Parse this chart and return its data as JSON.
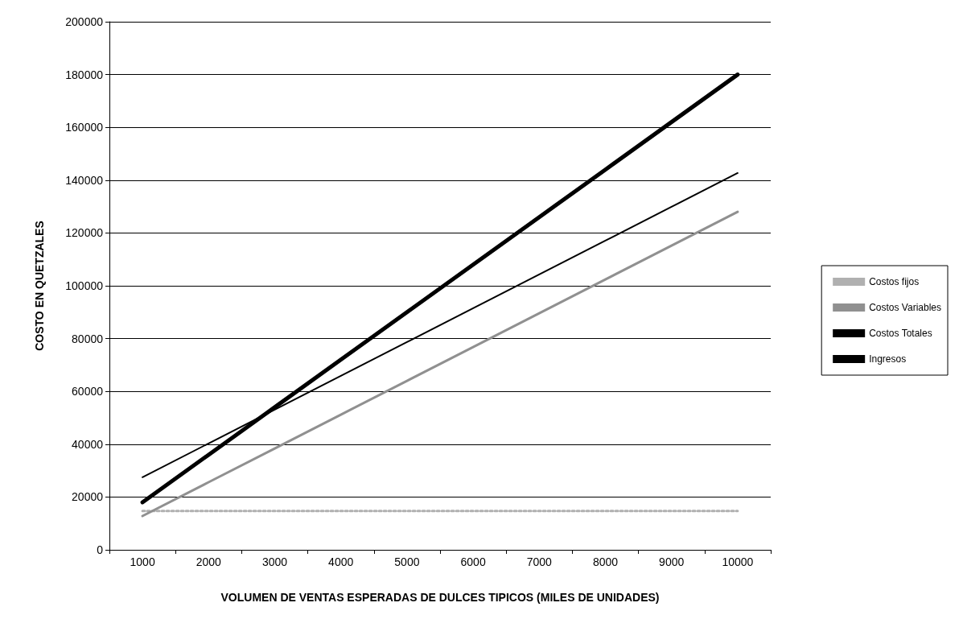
{
  "chart_data": {
    "type": "line",
    "xlabel": "VOLUMEN DE VENTAS ESPERADAS DE DULCES TIPICOS (MILES DE UNIDADES)",
    "ylabel": "COSTO EN QUETZALES",
    "categories": [
      "1000",
      "2000",
      "3000",
      "4000",
      "5000",
      "6000",
      "7000",
      "8000",
      "9000",
      "10000"
    ],
    "series": [
      {
        "name": "Costos fijos",
        "color": "#b0b0b0",
        "line_style": "dotted",
        "values": [
          14700,
          14700,
          14700,
          14700,
          14700,
          14700,
          14700,
          14700,
          14700,
          14700
        ]
      },
      {
        "name": "Costos Variables",
        "color": "#909090",
        "values": [
          12800,
          25600,
          38400,
          51200,
          64000,
          76800,
          89600,
          102400,
          115200,
          128000
        ]
      },
      {
        "name": "Costos Totales",
        "color": "#000000",
        "values": [
          27500,
          40300,
          53100,
          65900,
          78700,
          91500,
          104300,
          117100,
          129900,
          142700
        ]
      },
      {
        "name": "Ingresos",
        "color": "#000000",
        "values": [
          18000,
          36000,
          54000,
          72000,
          90000,
          108000,
          126000,
          144000,
          162000,
          180000
        ]
      }
    ],
    "ylim": [
      0,
      200000
    ],
    "yticks": [
      0,
      20000,
      40000,
      60000,
      80000,
      100000,
      120000,
      140000,
      160000,
      180000,
      200000
    ],
    "grid": "y",
    "legend": "right",
    "marker": "none",
    "line_style": "solid"
  }
}
